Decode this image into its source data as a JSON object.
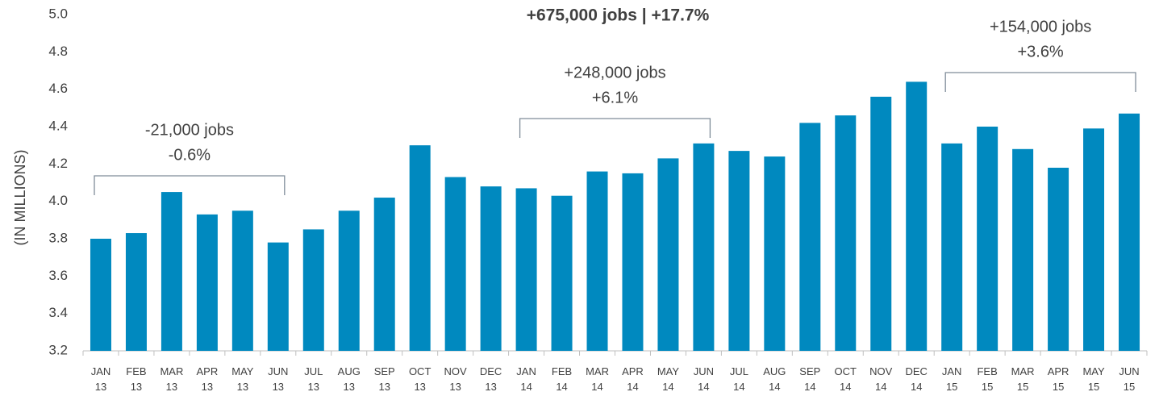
{
  "chart_data": {
    "type": "bar",
    "title": "+675,000 jobs | +17.7%",
    "y_label": "(IN MILLIONS)",
    "categories": [
      "JAN 13",
      "FEB 13",
      "MAR 13",
      "APR 13",
      "MAY 13",
      "JUN 13",
      "JUL 13",
      "AUG 13",
      "SEP 13",
      "OCT 13",
      "NOV 13",
      "DEC 13",
      "JAN 14",
      "FEB 14",
      "MAR 14",
      "APR 14",
      "MAY 14",
      "JUN 14",
      "JUL 14",
      "AUG 14",
      "SEP 14",
      "OCT 14",
      "NOV 14",
      "DEC 14",
      "JAN 15",
      "FEB 15",
      "MAR 15",
      "APR 15",
      "MAY 15",
      "JUN 15"
    ],
    "values": [
      3.8,
      3.83,
      4.05,
      3.93,
      3.95,
      3.78,
      3.85,
      3.95,
      4.02,
      4.3,
      4.13,
      4.08,
      4.07,
      4.03,
      4.16,
      4.15,
      4.23,
      4.31,
      4.27,
      4.24,
      4.42,
      4.46,
      4.56,
      4.64,
      4.31,
      4.4,
      4.28,
      4.18,
      4.39,
      4.47
    ],
    "color": "#0089bf",
    "ylim": [
      3.2,
      5.0
    ],
    "yticks": [
      3.2,
      3.4,
      3.6,
      3.8,
      {
        "value": 4,
        "label": "4.0"
      },
      4.2,
      4.4,
      4.6,
      4.8,
      {
        "value": 5,
        "label": "5.0"
      }
    ],
    "annotations": [
      [
        "-21,000 jobs",
        "-0.6%"
      ],
      [
        "+248,000 jobs",
        "+6.1%"
      ],
      [
        "+154,000 jobs",
        "+3.6%"
      ]
    ]
  }
}
